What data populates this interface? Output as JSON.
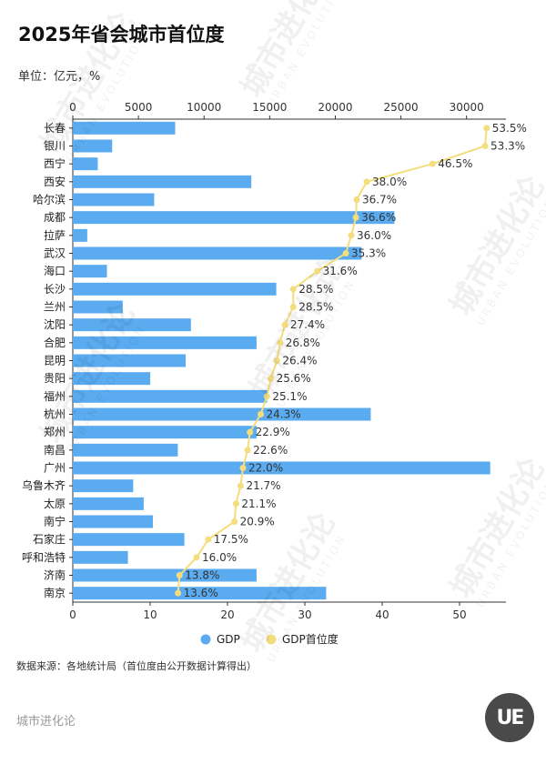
{
  "title": "2025年省会城市首位度",
  "unit_label": "单位：亿元，%",
  "source": "数据来源：各地统计局（首位度由公开数据计算得出）",
  "brand": "城市进化论",
  "logo_text": "UE",
  "watermark": {
    "main": "城市进化论",
    "sub": "URBAN EVOLUTION"
  },
  "colors": {
    "bar": "#5aabf0",
    "line": "#f4dd7c",
    "axis": "#333333"
  },
  "chart_data": {
    "type": "bar+line",
    "title": "2025年省会城市首位度",
    "categories": [
      "长春",
      "银川",
      "西宁",
      "西安",
      "哈尔滨",
      "成都",
      "拉萨",
      "武汉",
      "海口",
      "长沙",
      "兰州",
      "沈阳",
      "合肥",
      "昆明",
      "贵阳",
      "福州",
      "杭州",
      "郑州",
      "南昌",
      "广州",
      "乌鲁木齐",
      "太原",
      "南宁",
      "石家庄",
      "呼和浩特",
      "济南",
      "南京"
    ],
    "top_axis": {
      "min": 0,
      "max": 33000,
      "ticks": [
        0,
        5000,
        10000,
        15000,
        20000,
        25000,
        30000
      ]
    },
    "bottom_axis": {
      "min": 0,
      "max": 56,
      "ticks": [
        0,
        10,
        20,
        30,
        40,
        50
      ]
    },
    "series": [
      {
        "name": "GDP",
        "kind": "bar",
        "axis": "top",
        "values": [
          7800,
          3000,
          1900,
          13600,
          6200,
          24500,
          1100,
          22000,
          2600,
          15500,
          3800,
          9000,
          14000,
          8600,
          5900,
          14800,
          22700,
          14000,
          8000,
          31800,
          4600,
          5400,
          6100,
          8500,
          4200,
          14000,
          19300
        ]
      },
      {
        "name": "GDP首位度",
        "kind": "line",
        "axis": "bottom",
        "values": [
          53.5,
          53.3,
          46.5,
          38.0,
          36.7,
          36.6,
          36.0,
          35.3,
          31.6,
          28.5,
          28.5,
          27.4,
          26.8,
          26.4,
          25.6,
          25.1,
          24.3,
          22.9,
          22.6,
          22.0,
          21.7,
          21.1,
          20.9,
          17.5,
          16.0,
          13.8,
          13.6
        ],
        "labels": [
          "53.5%",
          "53.3%",
          "46.5%",
          "38.0%",
          "36.7%",
          "36.6%",
          "36.0%",
          "35.3%",
          "31.6%",
          "28.5%",
          "28.5%",
          "27.4%",
          "26.8%",
          "26.4%",
          "25.6%",
          "25.1%",
          "24.3%",
          "22.9%",
          "22.6%",
          "22.0%",
          "21.7%",
          "21.1%",
          "20.9%",
          "17.5%",
          "16.0%",
          "13.8%",
          "13.6%"
        ]
      }
    ],
    "legend": {
      "position": "bottom-center",
      "items": [
        "GDP",
        "GDP首位度"
      ]
    }
  }
}
